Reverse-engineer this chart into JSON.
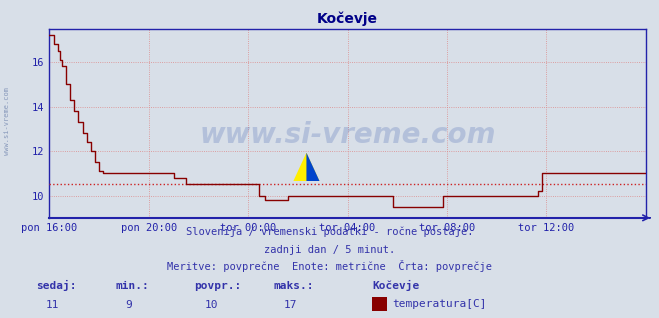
{
  "title": "Kočevje",
  "bg_color": "#d8dfe8",
  "plot_bg_color": "#d8dfe8",
  "line_color": "#880000",
  "avg_line_color": "#cc2222",
  "grid_color": "#dd8888",
  "axis_color": "#2222aa",
  "title_color": "#000088",
  "text_color": "#3333aa",
  "ylim": [
    9.0,
    17.5
  ],
  "yticks": [
    10,
    12,
    14,
    16
  ],
  "avg_value": 10.5,
  "watermark": "www.si-vreme.com",
  "subtitle1": "Slovenija / vremenski podatki - ročne postaje.",
  "subtitle2": "zadnji dan / 5 minut.",
  "subtitle3": "Meritve: povprečne  Enote: metrične  Črta: povprečje",
  "legend_label": "temperatura[C]",
  "legend_station": "Kočevje",
  "stats_labels": [
    "sedaj:",
    "min.:",
    "povpr.:",
    "maks.:"
  ],
  "stats_values": [
    "11",
    "9",
    "10",
    "17"
  ],
  "xtick_labels": [
    "pon 16:00",
    "pon 20:00",
    "tor 00:00",
    "tor 04:00",
    "tor 08:00",
    "tor 12:00"
  ],
  "xtick_positions": [
    0,
    48,
    96,
    144,
    192,
    240
  ],
  "total_points": 289,
  "temperature_data": [
    [
      0,
      17.2
    ],
    [
      2,
      16.8
    ],
    [
      4,
      16.5
    ],
    [
      5,
      16.1
    ],
    [
      6,
      15.8
    ],
    [
      8,
      15.0
    ],
    [
      10,
      14.3
    ],
    [
      12,
      13.8
    ],
    [
      14,
      13.3
    ],
    [
      16,
      12.8
    ],
    [
      18,
      12.4
    ],
    [
      20,
      12.0
    ],
    [
      22,
      11.5
    ],
    [
      24,
      11.1
    ],
    [
      26,
      11.0
    ],
    [
      48,
      11.0
    ],
    [
      54,
      11.0
    ],
    [
      60,
      10.8
    ],
    [
      66,
      10.5
    ],
    [
      96,
      10.5
    ],
    [
      100,
      10.5
    ],
    [
      101,
      10.0
    ],
    [
      104,
      9.8
    ],
    [
      110,
      9.8
    ],
    [
      115,
      10.0
    ],
    [
      140,
      10.0
    ],
    [
      155,
      10.0
    ],
    [
      160,
      10.0
    ],
    [
      166,
      9.5
    ],
    [
      175,
      9.5
    ],
    [
      185,
      9.5
    ],
    [
      189,
      9.5
    ],
    [
      190,
      10.0
    ],
    [
      192,
      10.0
    ],
    [
      230,
      10.0
    ],
    [
      236,
      10.2
    ],
    [
      238,
      11.0
    ],
    [
      239,
      11.0
    ],
    [
      288,
      11.0
    ]
  ]
}
